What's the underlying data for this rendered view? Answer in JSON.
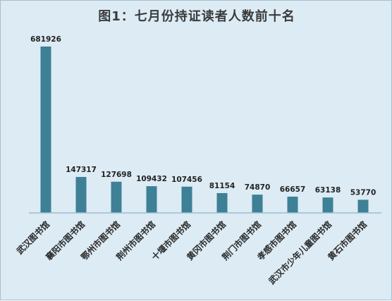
{
  "chart_data": {
    "type": "bar",
    "title": "图1：七月份持证读者人数前十名",
    "categories": [
      "武汉图书馆",
      "襄阳市图书馆",
      "鄂州市图书馆",
      "荆州市图书馆",
      "十堰市图书馆",
      "黄冈市图书馆",
      "荆门市图书馆",
      "孝感市图书馆",
      "武汉市少年儿童图书馆",
      "黄石市图书馆"
    ],
    "values": [
      681926,
      147317,
      127698,
      109432,
      107456,
      81154,
      74870,
      66657,
      63138,
      53770
    ],
    "xlabel": "",
    "ylabel": "",
    "ylim": [
      0,
      681926
    ],
    "grid": false,
    "legend": "none",
    "colors": {
      "bar": "#3e8096",
      "background": "#dcebf4",
      "baseline": "#9bbdd0"
    }
  }
}
